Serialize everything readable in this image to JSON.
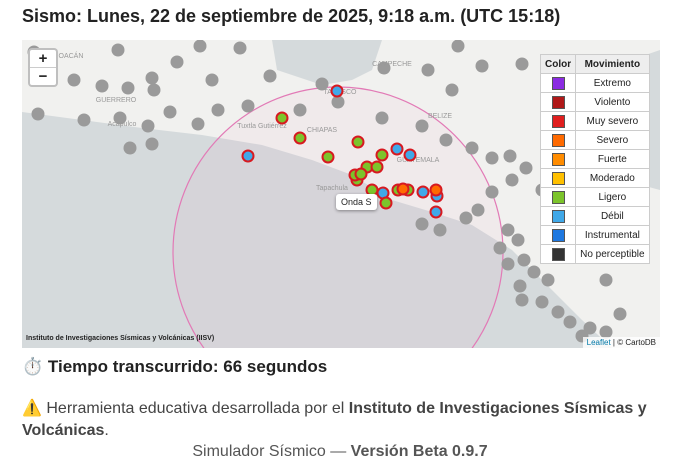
{
  "header": {
    "title": "Sismo: Lunes, 22 de septiembre de 2025, 9:18 a.m. (UTC 15:18)"
  },
  "map": {
    "zoom_in": "+",
    "zoom_out": "−",
    "labels": [
      "MICHOACÁN",
      "GUERRERO",
      "Acapulco",
      "Tuxtla Gutiérrez",
      "CHIAPAS",
      "TABASCO",
      "CAMPECHE",
      "BELIZE",
      "GUATEMALA",
      "Tapachula"
    ],
    "popup": "Onda S",
    "source": "Instituto de Investigaciones Sísmicas y Volcánicas (IISV)",
    "attribution_link": "Leaflet",
    "attribution": "| © CartoDB"
  },
  "legend": {
    "headers": [
      "Color",
      "Movimiento"
    ],
    "rows": [
      {
        "label": "Extremo",
        "color": "#8b2be2"
      },
      {
        "label": "Violento",
        "color": "#b01818"
      },
      {
        "label": "Muy severo",
        "color": "#e01e1e"
      },
      {
        "label": "Severo",
        "color": "#ff6a00"
      },
      {
        "label": "Fuerte",
        "color": "#ff8c00"
      },
      {
        "label": "Moderado",
        "color": "#ffc000"
      },
      {
        "label": "Ligero",
        "color": "#7cc42b"
      },
      {
        "label": "Débil",
        "color": "#40a8e8"
      },
      {
        "label": "Instrumental",
        "color": "#1e78e0"
      },
      {
        "label": "No perceptible",
        "color": "#333333"
      }
    ]
  },
  "elapsed": {
    "icon": "⏱️",
    "label": "Tiempo transcurrido: 66 segundos"
  },
  "notice": {
    "icon": "⚠️",
    "text": "Herramienta educativa desarrollada por el",
    "bold": "Instituto de Investigaciones Sísmicas y Volcánicas",
    "end": "."
  },
  "footer": {
    "text": "Simulador Sísmico —",
    "bold": "Versión Beta 0.9.7"
  }
}
